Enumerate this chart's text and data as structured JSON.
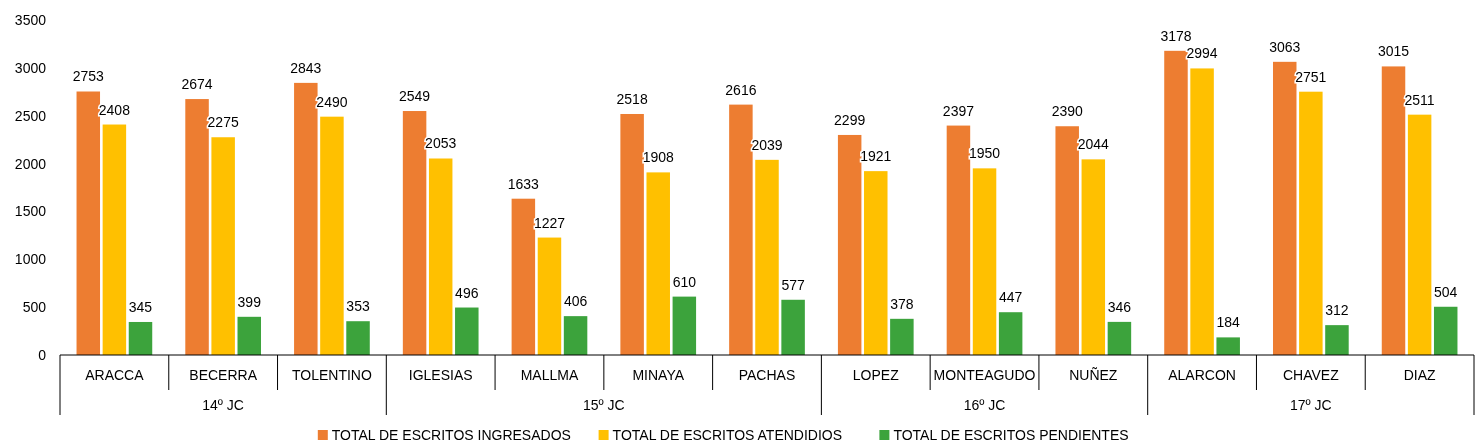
{
  "chart_data": {
    "type": "bar",
    "categories": [
      "ARACCA",
      "BECERRA",
      "TOLENTINO",
      "IGLESIAS",
      "MALLMA",
      "MINAYA",
      "PACHAS",
      "LOPEZ",
      "MONTEAGUDO",
      "NUÑEZ",
      "ALARCON",
      "CHAVEZ",
      "DIAZ"
    ],
    "series": [
      {
        "name": "TOTAL DE ESCRITOS INGRESADOS",
        "color": "#ed7d31",
        "values": [
          2753,
          2674,
          2843,
          2549,
          1633,
          2518,
          2616,
          2299,
          2397,
          2390,
          3178,
          3063,
          3015
        ]
      },
      {
        "name": "TOTAL DE ESCRITOS ATENDIDIOS",
        "color": "#ffc000",
        "values": [
          2408,
          2275,
          2490,
          2053,
          1227,
          1908,
          2039,
          1921,
          1950,
          2044,
          2994,
          2751,
          2511
        ]
      },
      {
        "name": "TOTAL DE ESCRITOS PENDIENTES",
        "color": "#3ca33c",
        "values": [
          345,
          399,
          353,
          496,
          406,
          610,
          577,
          378,
          447,
          346,
          184,
          312,
          504
        ]
      }
    ],
    "ylim": [
      0,
      3500
    ],
    "yticks": [
      0,
      500,
      1000,
      1500,
      2000,
      2500,
      3000,
      3500
    ],
    "grid": false,
    "legend": "bottom",
    "data_labels": true,
    "annotations": [
      "14º JC",
      "15º JC",
      "16º JC",
      "17º JC"
    ]
  }
}
